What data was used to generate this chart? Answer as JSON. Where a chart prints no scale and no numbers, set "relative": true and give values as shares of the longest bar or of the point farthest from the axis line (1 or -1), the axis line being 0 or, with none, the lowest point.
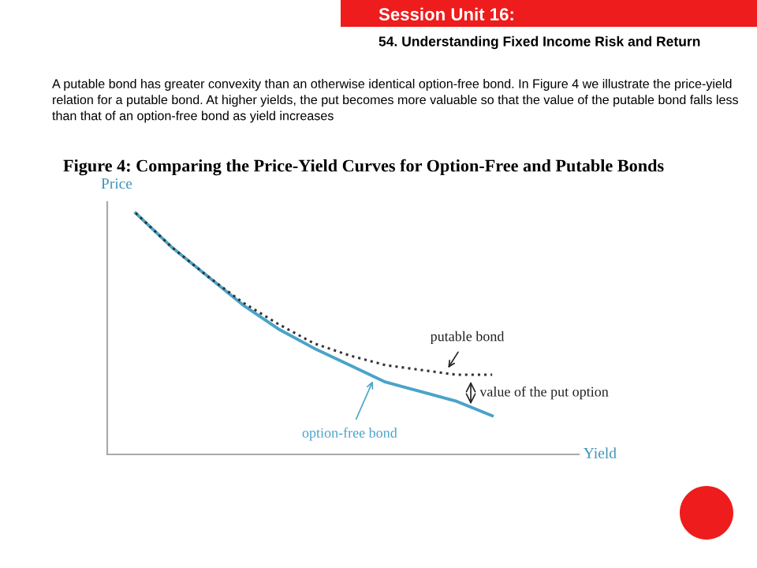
{
  "chart_data": {
    "type": "line",
    "title": "Figure 4: Comparing the Price-Yield Curves for Option-Free and Putable Bonds",
    "subtitle": "54. Understanding Fixed Income Risk and Return",
    "xlabel": "Yield",
    "ylabel": "Price",
    "relative": true,
    "grid": false,
    "legend": false,
    "marker": "none",
    "categories": [
      null,
      null,
      null,
      null,
      null,
      null,
      null,
      null,
      null,
      null,
      null
    ],
    "series": [
      {
        "name": "option-free bond",
        "color": "#4aa3c8",
        "line_style": "solid",
        "values": [
          1,
          0.86,
          0.74,
          0.62,
          0.52,
          0.44,
          0.37,
          0.3,
          0.26,
          0.22,
          0.16
        ]
      },
      {
        "name": "putable bond",
        "color": "#333333",
        "line_style": "dotted",
        "values": [
          1,
          0.86,
          0.74,
          0.63,
          0.54,
          0.46,
          0.41,
          0.37,
          0.35,
          0.33,
          0.33
        ]
      }
    ],
    "annotations": [
      "Session Unit 16:",
      "A putable bond has greater convexity than an otherwise identical option-free bond. In Figure 4 we illustrate the price-yield relation for a putable bond. At higher yields, the put becomes more valuable so that the value of the putable bond falls less than that of an option-free bond as yield increases",
      "value of the put option"
    ]
  }
}
